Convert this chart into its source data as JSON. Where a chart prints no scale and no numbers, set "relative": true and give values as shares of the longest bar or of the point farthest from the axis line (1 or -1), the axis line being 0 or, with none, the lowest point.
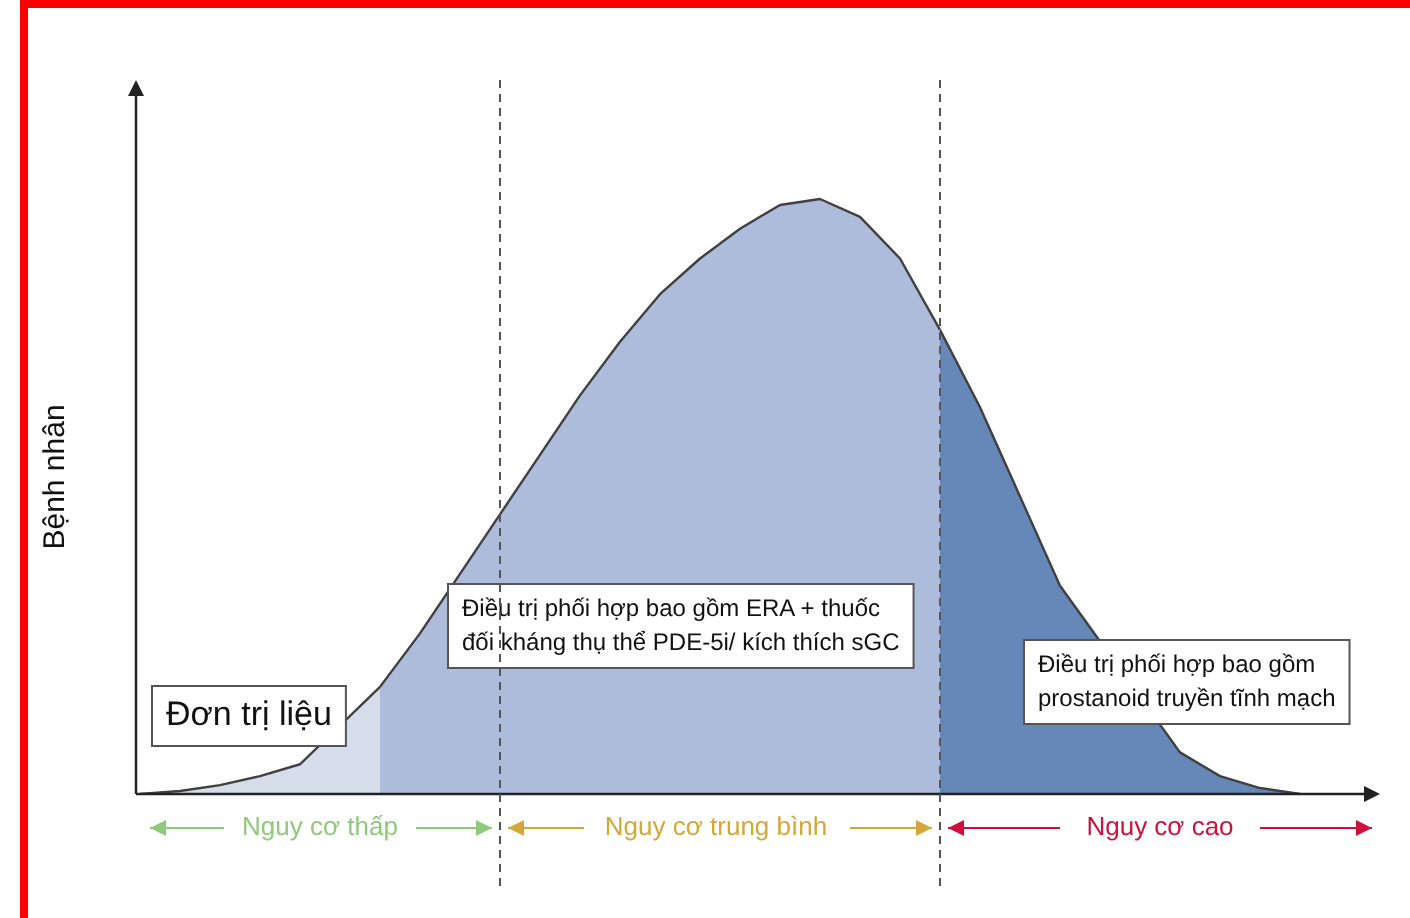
{
  "chart_data": {
    "type": "area",
    "relative": true,
    "ylabel": "Bệnh nhân",
    "legend": false,
    "categories": [
      null,
      null,
      null,
      null,
      null,
      null,
      null,
      null,
      null,
      null,
      null,
      null,
      null,
      null,
      null,
      null,
      null,
      null,
      null,
      null,
      null,
      null,
      null,
      null,
      null,
      null,
      null,
      null,
      null,
      null,
      null,
      null
    ],
    "series": [
      {
        "color": "#d5dcea",
        "values": [
          0,
          0.005,
          0.015,
          0.03,
          0.05,
          null,
          0.18,
          null,
          null,
          null,
          null,
          null,
          null,
          null,
          null,
          null,
          null,
          null,
          null,
          null,
          null,
          null,
          null,
          null,
          null,
          null,
          null,
          null,
          null,
          null,
          null,
          null
        ]
      },
      {
        "color": "#adbcdb",
        "values": [
          null,
          null,
          null,
          null,
          null,
          null,
          0.18,
          0.27,
          0.37,
          0.47,
          0.57,
          0.67,
          0.76,
          0.84,
          0.9,
          0.95,
          0.99,
          1,
          0.97,
          0.9,
          0.78,
          null,
          null,
          null,
          null,
          null,
          null,
          null,
          null,
          null,
          null,
          null
        ]
      },
      {
        "color": "#6688b8",
        "values": [
          null,
          null,
          null,
          null,
          null,
          null,
          null,
          null,
          null,
          null,
          null,
          null,
          null,
          null,
          null,
          null,
          null,
          null,
          null,
          null,
          0.78,
          0.65,
          0.5,
          0.35,
          null,
          null,
          0.07,
          0.03,
          0.01,
          0,
          null,
          null
        ]
      }
    ],
    "annotations": [
      "Đơn trị liệu",
      "Điều trị phối hợp bao gồm ERA + thuốc\nđối kháng thụ thể PDE-5i/ kích thích sGC",
      "Điều trị phối hợp bao gồm\nprostanoid truyền tĩnh mạch",
      "Nguy cơ thấp",
      "Nguy cơ trung bình",
      "Nguy cơ cao"
    ]
  }
}
